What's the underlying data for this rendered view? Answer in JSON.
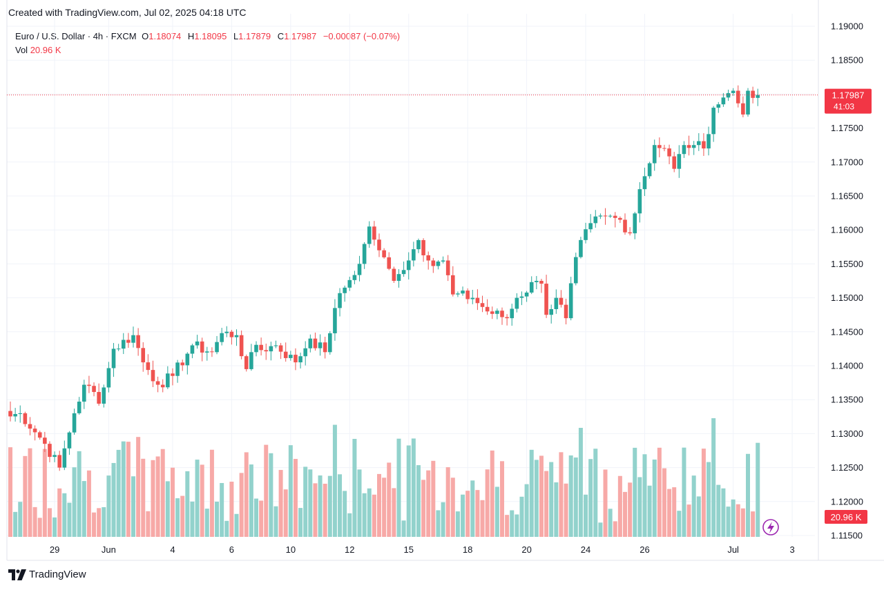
{
  "caption": "Created with TradingView.com, Jul 02, 2025 04:18 UTC",
  "brand": "TradingView",
  "legend": {
    "symbol": "Euro / U.S. Dollar · 4h · FXCM",
    "open_label": "O",
    "open": "1.18074",
    "high_label": "H",
    "high": "1.18095",
    "low_label": "L",
    "low": "1.17879",
    "close_label": "C",
    "close": "1.17987",
    "change": "−0.00087 (−0.07%)",
    "vol_label": "Vol",
    "vol": "20.96 K"
  },
  "colors": {
    "up": "#26a69a",
    "down": "#ef5350",
    "vol_up": "#92d2cc",
    "vol_down": "#f7a9a7",
    "price_tag": "#f23645",
    "grid": "#f0f3fa"
  },
  "chart_data": {
    "type": "candlestick",
    "ylim": [
      1.115,
      1.19
    ],
    "y_ticks": [
      "1.19000",
      "1.18500",
      "1.18000",
      "1.17500",
      "1.17000",
      "1.16500",
      "1.16000",
      "1.15500",
      "1.15000",
      "1.14500",
      "1.14000",
      "1.13500",
      "1.13000",
      "1.12500",
      "1.12000",
      "1.11500"
    ],
    "x_ticks": [
      "29",
      "Jun",
      "4",
      "6",
      "10",
      "12",
      "15",
      "18",
      "20",
      "24",
      "26",
      "Jul",
      "3"
    ],
    "last_price": "1.17987",
    "countdown": "41:03",
    "last_volume": "20.96 K",
    "anchors": [
      [
        "2025-05-28 00:00",
        1.133
      ],
      [
        "2025-05-28 20:00",
        1.1285
      ],
      [
        "2025-05-29 08:00",
        1.125
      ],
      [
        "2025-05-29 20:00",
        1.133
      ],
      [
        "2025-05-30 04:00",
        1.1372
      ],
      [
        "2025-05-30 20:00",
        1.1345
      ],
      [
        "2025-06-01 20:00",
        1.1368
      ],
      [
        "2025-06-02 04:00",
        1.1425
      ],
      [
        "2025-06-02 20:00",
        1.1445
      ],
      [
        "2025-06-03 04:00",
        1.1405
      ],
      [
        "2025-06-03 16:00",
        1.1372
      ],
      [
        "2025-06-04 04:00",
        1.1385
      ],
      [
        "2025-06-04 20:00",
        1.143
      ],
      [
        "2025-06-05 12:00",
        1.142
      ],
      [
        "2025-06-05 20:00",
        1.1448
      ],
      [
        "2025-06-06 08:00",
        1.1445
      ],
      [
        "2025-06-06 16:00",
        1.1395
      ],
      [
        "2025-06-08 20:00",
        1.142
      ],
      [
        "2025-06-09 16:00",
        1.143
      ],
      [
        "2025-06-10 08:00",
        1.1405
      ],
      [
        "2025-06-10 20:00",
        1.144
      ],
      [
        "2025-06-11 08:00",
        1.142
      ],
      [
        "2025-06-11 16:00",
        1.1485
      ],
      [
        "2025-06-12 00:00",
        1.1515
      ],
      [
        "2025-06-12 12:00",
        1.155
      ],
      [
        "2025-06-12 20:00",
        1.1605
      ],
      [
        "2025-06-13 04:00",
        1.157
      ],
      [
        "2025-06-13 16:00",
        1.1525
      ],
      [
        "2025-06-13 20:00",
        1.1545
      ],
      [
        "2025-06-15 20:00",
        1.1535
      ],
      [
        "2025-06-16 12:00",
        1.1585
      ],
      [
        "2025-06-16 20:00",
        1.1555
      ],
      [
        "2025-06-17 08:00",
        1.1555
      ],
      [
        "2025-06-17 16:00",
        1.1505
      ],
      [
        "2025-06-18 08:00",
        1.15
      ],
      [
        "2025-06-18 20:00",
        1.148
      ],
      [
        "2025-06-19 12:00",
        1.147
      ],
      [
        "2025-06-19 20:00",
        1.15
      ],
      [
        "2025-06-20 12:00",
        1.1525
      ],
      [
        "2025-06-20 20:00",
        1.153
      ],
      [
        "2025-06-22 20:00",
        1.1475
      ],
      [
        "2025-06-23 04:00",
        1.15
      ],
      [
        "2025-06-23 12:00",
        1.147
      ],
      [
        "2025-06-23 20:00",
        1.156
      ],
      [
        "2025-06-24 08:00",
        1.161
      ],
      [
        "2025-06-24 20:00",
        1.162
      ],
      [
        "2025-06-25 08:00",
        1.1615
      ],
      [
        "2025-06-25 16:00",
        1.1595
      ],
      [
        "2025-06-26 00:00",
        1.166
      ],
      [
        "2025-06-26 12:00",
        1.1725
      ],
      [
        "2025-06-26 20:00",
        1.172
      ],
      [
        "2025-06-27 04:00",
        1.169
      ],
      [
        "2025-06-27 12:00",
        1.1725
      ],
      [
        "2025-06-29 20:00",
        1.1725
      ],
      [
        "2025-06-30 04:00",
        1.172
      ],
      [
        "2025-06-30 12:00",
        1.178
      ],
      [
        "2025-06-30 20:00",
        1.1795
      ],
      [
        "2025-07-01 04:00",
        1.1805
      ],
      [
        "2025-07-01 12:00",
        1.177
      ],
      [
        "2025-07-01 16:00",
        1.1805
      ],
      [
        "2025-07-02 00:00",
        1.17987
      ]
    ]
  }
}
